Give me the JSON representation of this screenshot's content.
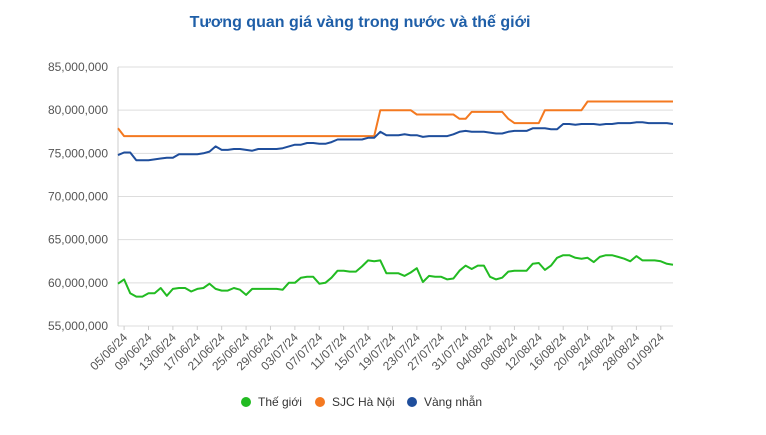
{
  "chart_data": {
    "type": "line",
    "title": "Tương quan giá vàng trong nước và thế giới",
    "xlabel": "",
    "ylabel": "",
    "ylim": [
      55000000,
      85000000
    ],
    "yticks": [
      55000000,
      60000000,
      65000000,
      70000000,
      75000000,
      80000000,
      85000000
    ],
    "ytick_labels": [
      "55,000,000",
      "60,000,000",
      "65,000,000",
      "70,000,000",
      "75,000,000",
      "80,000,000",
      "85,000,000"
    ],
    "xtick_labels": [
      "05/06/24",
      "09/06/24",
      "13/06/24",
      "17/06/24",
      "21/06/24",
      "25/06/24",
      "29/06/24",
      "03/07/24",
      "07/07/24",
      "11/07/24",
      "15/07/24",
      "19/07/24",
      "23/07/24",
      "27/07/24",
      "31/07/24",
      "04/08/24",
      "08/08/24",
      "12/08/24",
      "16/08/24",
      "20/08/24",
      "24/08/24",
      "28/08/24",
      "01/09/24"
    ],
    "x_start": "04/06/24",
    "x_end": "03/09/24",
    "grid": "horizontal",
    "legend_position": "bottom",
    "series": [
      {
        "name": "Thế giới",
        "color": "#22bb22",
        "values": [
          59900000,
          60400000,
          58800000,
          58400000,
          58400000,
          58800000,
          58800000,
          59400000,
          58500000,
          59300000,
          59400000,
          59400000,
          59000000,
          59300000,
          59400000,
          59900000,
          59300000,
          59100000,
          59100000,
          59400000,
          59200000,
          58600000,
          59300000,
          59300000,
          59300000,
          59300000,
          59300000,
          59200000,
          60000000,
          60000000,
          60600000,
          60700000,
          60700000,
          59900000,
          60000000,
          60600000,
          61400000,
          61400000,
          61300000,
          61300000,
          61900000,
          62600000,
          62500000,
          62600000,
          61100000,
          61100000,
          61100000,
          60800000,
          61200000,
          61700000,
          60100000,
          60800000,
          60700000,
          60700000,
          60400000,
          60500000,
          61400000,
          62000000,
          61600000,
          62000000,
          62000000,
          60700000,
          60400000,
          60600000,
          61300000,
          61400000,
          61400000,
          61400000,
          62200000,
          62300000,
          61500000,
          62000000,
          62900000,
          63200000,
          63200000,
          62900000,
          62800000,
          62900000,
          62400000,
          63000000,
          63200000,
          63200000,
          63000000,
          62800000,
          62500000,
          63100000,
          62600000,
          62600000,
          62600000,
          62500000,
          62200000,
          62100000
        ]
      },
      {
        "name": "SJC Hà Nội",
        "color": "#f47920",
        "values": [
          77900000,
          77000000,
          77000000,
          77000000,
          77000000,
          77000000,
          77000000,
          77000000,
          77000000,
          77000000,
          77000000,
          77000000,
          77000000,
          77000000,
          77000000,
          77000000,
          77000000,
          77000000,
          77000000,
          77000000,
          77000000,
          77000000,
          77000000,
          77000000,
          77000000,
          77000000,
          77000000,
          77000000,
          77000000,
          77000000,
          77000000,
          77000000,
          77000000,
          77000000,
          77000000,
          77000000,
          77000000,
          77000000,
          77000000,
          77000000,
          77000000,
          77000000,
          77000000,
          80000000,
          80000000,
          80000000,
          80000000,
          80000000,
          80000000,
          79500000,
          79500000,
          79500000,
          79500000,
          79500000,
          79500000,
          79500000,
          79000000,
          79000000,
          79800000,
          79800000,
          79800000,
          79800000,
          79800000,
          79800000,
          79000000,
          78500000,
          78500000,
          78500000,
          78500000,
          78500000,
          80000000,
          80000000,
          80000000,
          80000000,
          80000000,
          80000000,
          80000000,
          81000000,
          81000000,
          81000000,
          81000000,
          81000000,
          81000000,
          81000000,
          81000000,
          81000000,
          81000000,
          81000000,
          81000000,
          81000000,
          81000000,
          81000000
        ]
      },
      {
        "name": "Vàng nhẫn",
        "color": "#1f4e9c",
        "values": [
          74800000,
          75100000,
          75100000,
          74200000,
          74200000,
          74200000,
          74300000,
          74400000,
          74500000,
          74500000,
          74900000,
          74900000,
          74900000,
          74900000,
          75000000,
          75200000,
          75800000,
          75400000,
          75400000,
          75500000,
          75500000,
          75400000,
          75300000,
          75500000,
          75500000,
          75500000,
          75500000,
          75600000,
          75800000,
          76000000,
          76000000,
          76200000,
          76200000,
          76100000,
          76100000,
          76300000,
          76600000,
          76600000,
          76600000,
          76600000,
          76600000,
          76800000,
          76800000,
          77500000,
          77100000,
          77100000,
          77100000,
          77200000,
          77100000,
          77100000,
          76900000,
          77000000,
          77000000,
          77000000,
          77000000,
          77200000,
          77500000,
          77600000,
          77500000,
          77500000,
          77500000,
          77400000,
          77300000,
          77300000,
          77500000,
          77600000,
          77600000,
          77600000,
          77900000,
          77900000,
          77900000,
          77800000,
          77800000,
          78400000,
          78400000,
          78300000,
          78400000,
          78400000,
          78400000,
          78300000,
          78400000,
          78400000,
          78500000,
          78500000,
          78500000,
          78600000,
          78600000,
          78500000,
          78500000,
          78500000,
          78500000,
          78400000
        ]
      }
    ]
  }
}
